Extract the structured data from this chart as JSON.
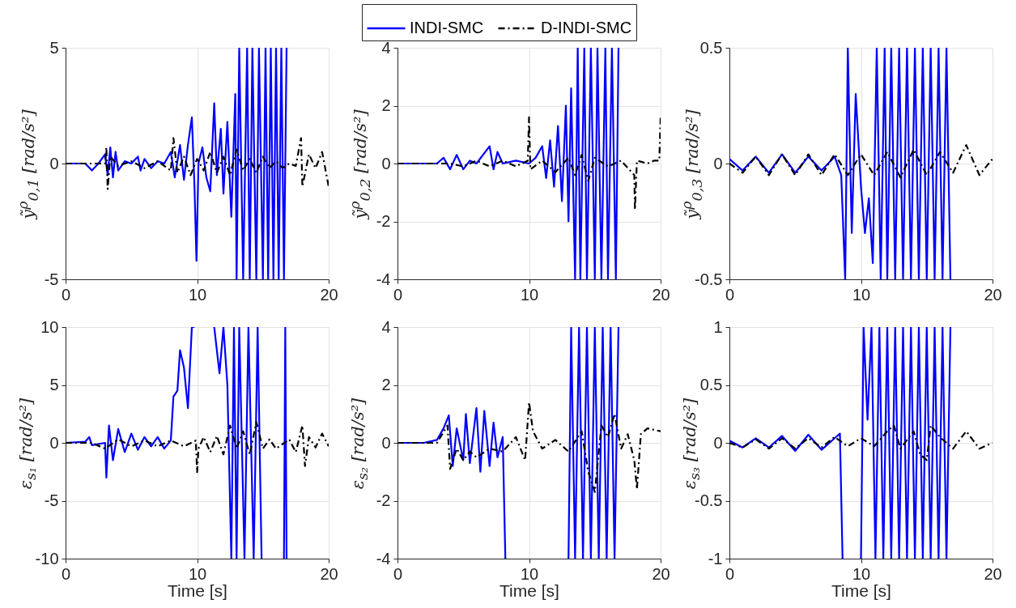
{
  "chart_data": [
    {
      "type": "line",
      "ylabel": "ỹ$^{ρ}$$_{0,1}$ [rad/s²]",
      "xlim": [
        0,
        20
      ],
      "xticks": [
        0,
        10,
        20
      ],
      "ylim": [
        -5,
        5
      ],
      "yticks": [
        -5,
        0,
        5
      ],
      "grid": true,
      "legend": "top",
      "series": [
        {
          "name": "INDI-SMC",
          "color": "#0000ff",
          "line_style": "solid",
          "x": [
            0,
            1.5,
            2,
            2.5,
            3,
            3.2,
            3.4,
            3.6,
            3.8,
            4,
            4.5,
            5,
            5.5,
            5.7,
            6,
            6.5,
            7,
            7.5,
            8,
            8.3,
            8.7,
            9,
            9.3,
            9.6,
            9.8,
            9.95,
            10.1,
            10.4,
            10.7,
            11,
            11.3,
            11.5,
            11.8,
            12,
            12.3,
            12.6,
            12.9,
            13,
            13.2,
            13.5,
            13.8,
            14,
            14.2,
            14.5,
            14.7,
            15,
            15.2,
            15.4,
            15.6,
            15.8,
            16,
            16.2,
            16.4,
            16.6,
            16.8
          ],
          "values": [
            0,
            0,
            -0.3,
            0,
            0.4,
            -0.5,
            0.7,
            -0.6,
            0.5,
            -0.3,
            0.1,
            0,
            0.3,
            -0.3,
            0.2,
            -0.2,
            0.1,
            0,
            0.5,
            -0.6,
            0.8,
            -0.7,
            0.8,
            2,
            -1,
            -4.2,
            0,
            0.7,
            -0.6,
            -1.2,
            2.6,
            -0.5,
            1.5,
            -1.3,
            1.8,
            -2.3,
            3,
            -5,
            5,
            -5,
            5,
            -5,
            5,
            -5,
            5,
            -5,
            5,
            -5,
            5,
            -5,
            5,
            -5,
            5,
            -5,
            5
          ]
        },
        {
          "name": "D-INDI-SMC",
          "color": "#000000",
          "line_style": "dashed",
          "x": [
            0,
            3,
            3.1,
            3.2,
            3.4,
            4,
            5,
            6,
            7,
            8,
            8.2,
            8.5,
            9,
            9.5,
            10,
            10.5,
            11,
            11.5,
            12,
            12.5,
            13,
            13.5,
            14,
            14.5,
            15,
            15.5,
            16,
            16.5,
            17,
            17.5,
            17.9,
            18,
            18.5,
            19,
            19.5,
            20
          ],
          "values": [
            0,
            0,
            0.7,
            -1.1,
            0.3,
            -0.1,
            0.1,
            -0.2,
            0.1,
            -0.3,
            1.1,
            -0.4,
            0.3,
            -0.5,
            0.2,
            -0.3,
            0.5,
            -0.4,
            0.3,
            -0.5,
            0.6,
            -0.3,
            0.2,
            -0.4,
            0.3,
            -0.2,
            0.1,
            -0.2,
            0,
            -0.1,
            1.1,
            -1,
            0.4,
            -0.2,
            0.5,
            -1
          ]
        }
      ]
    },
    {
      "type": "line",
      "ylabel": "ỹ$^{ρ}$$_{0,2}$ [rad/s²]",
      "xlim": [
        0,
        20
      ],
      "xticks": [
        0,
        10,
        20
      ],
      "ylim": [
        -4,
        4
      ],
      "yticks": [
        -4,
        -2,
        0,
        2,
        4
      ],
      "grid": true,
      "legend": "top",
      "series": [
        {
          "name": "INDI-SMC",
          "color": "#0000ff",
          "line_style": "solid",
          "x": [
            0,
            3,
            3.5,
            4,
            4.5,
            5,
            5.5,
            6,
            7,
            7.3,
            7.6,
            8,
            9,
            10,
            10.5,
            11,
            11.3,
            11.6,
            11.9,
            12.2,
            12.5,
            12.8,
            13,
            13.2,
            13.5,
            13.7,
            13.9,
            14.2,
            14.4,
            14.7,
            15,
            15.2,
            15.5,
            15.8,
            16,
            16.3,
            16.6,
            16.8
          ],
          "values": [
            0,
            0,
            0.2,
            -0.2,
            0.3,
            -0.2,
            0.1,
            0,
            0.6,
            -0.2,
            0.4,
            0,
            0.1,
            0,
            0.2,
            0.6,
            -0.5,
            0.8,
            -0.8,
            1.3,
            -1.3,
            2,
            -2,
            2.6,
            -4,
            4,
            -4,
            4,
            -4,
            4,
            -4,
            4,
            -4,
            4,
            -4,
            4,
            -4,
            4
          ]
        },
        {
          "name": "D-INDI-SMC",
          "color": "#000000",
          "line_style": "dashed",
          "x": [
            0,
            4,
            5,
            6,
            7,
            8,
            9,
            9.9,
            10,
            10.1,
            11,
            12,
            13,
            13.5,
            14,
            14.5,
            15,
            16,
            17,
            18,
            18.05,
            18.2,
            19,
            19.5,
            19.9,
            20
          ],
          "values": [
            0,
            0,
            -0.1,
            0.1,
            -0.1,
            0.1,
            -0.1,
            0.1,
            1.6,
            -0.2,
            0.1,
            -0.3,
            0.2,
            -0.4,
            0.3,
            -0.6,
            0.2,
            -0.1,
            0.1,
            -0.4,
            -1.6,
            0.1,
            0,
            0.1,
            0.1,
            1.6
          ]
        }
      ]
    },
    {
      "type": "line",
      "ylabel": "ỹ$^{ρ}$$_{0,3}$ [rad/s²]",
      "xlim": [
        0,
        20
      ],
      "xticks": [
        0,
        10,
        20
      ],
      "ylim": [
        -0.5,
        0.5
      ],
      "yticks": [
        -0.5,
        0,
        0.5
      ],
      "grid": true,
      "legend": "top",
      "series": [
        {
          "name": "INDI-SMC",
          "color": "#0000ff",
          "line_style": "solid",
          "x": [
            0,
            1,
            2,
            3,
            4,
            5,
            6,
            7,
            8,
            8.5,
            8.8,
            9,
            9.3,
            9.6,
            10,
            10.3,
            10.6,
            10.9,
            11.2,
            11.5,
            11.8,
            12,
            12.3,
            12.6,
            12.9,
            13.2,
            13.5,
            13.8,
            14.1,
            14.4,
            14.7,
            15,
            15.3,
            15.6,
            15.9,
            16.2,
            16.5,
            16.8
          ],
          "values": [
            0.02,
            -0.03,
            0.03,
            -0.04,
            0.04,
            -0.04,
            0.03,
            -0.03,
            0.03,
            -0.05,
            -0.5,
            0.5,
            -0.3,
            0.3,
            -0.1,
            -0.3,
            -0.15,
            -0.43,
            0.5,
            -0.5,
            0.5,
            -0.5,
            0.5,
            -0.5,
            0.5,
            -0.5,
            0.5,
            -0.5,
            0.5,
            -0.5,
            0.5,
            -0.5,
            0.5,
            -0.5,
            0.5,
            -0.5,
            0.5,
            -0.5
          ]
        },
        {
          "name": "D-INDI-SMC",
          "color": "#000000",
          "line_style": "dashed",
          "x": [
            0,
            1,
            2,
            3,
            4,
            5,
            6,
            7,
            8,
            9,
            10,
            11,
            12,
            13,
            14,
            15,
            16,
            17,
            18,
            19,
            20
          ],
          "values": [
            0,
            -0.04,
            0.03,
            -0.05,
            0.04,
            -0.05,
            0.04,
            -0.05,
            0.04,
            -0.05,
            0.04,
            -0.05,
            0.05,
            -0.06,
            0.06,
            -0.05,
            0.05,
            -0.04,
            0.08,
            -0.05,
            0.02
          ]
        }
      ]
    },
    {
      "type": "line",
      "xlabel": "Time [s]",
      "ylabel": "ε$_{s₁}$ [rad/s²]",
      "xlim": [
        0,
        20
      ],
      "xticks": [
        0,
        10,
        20
      ],
      "ylim": [
        -10,
        10
      ],
      "yticks": [
        -10,
        -5,
        0,
        5,
        10
      ],
      "grid": true,
      "legend": "top",
      "series": [
        {
          "name": "INDI-SMC",
          "color": "#0000ff",
          "line_style": "solid",
          "x": [
            0,
            1.5,
            1.8,
            2,
            3,
            3.1,
            3.3,
            3.6,
            4,
            4.5,
            5,
            5.5,
            6,
            6.5,
            7,
            7.5,
            8,
            8.2,
            8.5,
            8.7,
            9,
            9.3,
            9.6,
            9.8,
            10.5,
            11.3,
            11.5,
            11.7,
            12,
            12.3,
            12.6,
            12.8,
            13,
            13.2,
            13.6,
            13.9,
            14.3,
            14.6,
            14.9,
            15.2,
            16.6,
            16.7,
            16.8
          ],
          "values": [
            0,
            0.1,
            0.5,
            -0.2,
            0,
            -3,
            1.5,
            -1.5,
            1.2,
            -0.8,
            0.8,
            -0.6,
            0.5,
            -0.3,
            0.5,
            -0.5,
            0.2,
            4,
            4.5,
            8,
            6.5,
            3,
            10,
            10,
            null,
            10,
            8,
            6,
            10,
            5,
            -10,
            10,
            -10,
            10,
            -10,
            10,
            -10,
            10,
            -10,
            null,
            -10,
            10,
            -10
          ]
        },
        {
          "name": "D-INDI-SMC",
          "color": "#000000",
          "line_style": "dashed",
          "x": [
            0,
            2,
            3,
            4,
            5,
            6,
            7,
            8,
            9,
            9.9,
            10,
            10.1,
            10.5,
            11,
            11.5,
            12,
            12.5,
            13,
            13.5,
            14,
            14.5,
            15,
            15.5,
            16,
            17,
            17.5,
            18,
            18.2,
            18.5,
            19,
            19.5,
            20
          ],
          "values": [
            0,
            0,
            -0.5,
            0.3,
            -0.3,
            0.2,
            -0.3,
            0.2,
            -0.3,
            0.2,
            -2.6,
            -0.5,
            0.5,
            -0.8,
            0.6,
            -1,
            1.5,
            -0.5,
            1,
            -1,
            1.8,
            -0.5,
            0.3,
            -0.5,
            0.3,
            -0.8,
            1.5,
            -2,
            0.5,
            -0.4,
            0.8,
            -0.3
          ]
        }
      ]
    },
    {
      "type": "line",
      "xlabel": "Time [s]",
      "ylabel": "ε$_{s₂}$ [rad/s²]",
      "xlim": [
        0,
        20
      ],
      "xticks": [
        0,
        10,
        20
      ],
      "ylim": [
        -4,
        4
      ],
      "yticks": [
        -4,
        -2,
        0,
        2,
        4
      ],
      "grid": true,
      "legend": "top",
      "series": [
        {
          "name": "INDI-SMC",
          "color": "#0000ff",
          "line_style": "solid",
          "x": [
            0,
            2,
            3,
            3.5,
            3.9,
            4.2,
            4.5,
            5,
            5.2,
            5.5,
            6,
            6.3,
            6.6,
            7,
            7.3,
            7.6,
            8,
            8.2,
            9,
            13,
            13.2,
            13.5,
            13.8,
            14.1,
            14.4,
            14.7,
            15,
            15.3,
            15.6,
            15.9,
            16.2,
            16.5,
            16.8
          ],
          "values": [
            0,
            0,
            0.1,
            0.5,
            0.95,
            -0.8,
            0.5,
            -0.6,
            1,
            -0.7,
            1.2,
            -1,
            1.1,
            -0.8,
            0.7,
            -0.5,
            0.2,
            -4,
            null,
            -4,
            4,
            -4,
            4,
            -4,
            4,
            -4,
            4,
            -4,
            4,
            -4,
            4,
            -4,
            4
          ]
        },
        {
          "name": "D-INDI-SMC",
          "color": "#000000",
          "line_style": "dashed",
          "x": [
            0,
            3,
            3.8,
            4,
            4.5,
            5,
            5.5,
            6,
            7,
            8,
            9,
            9.7,
            10,
            10.3,
            11,
            12,
            13,
            14,
            14.5,
            15,
            15.5,
            16,
            16.5,
            17,
            17.5,
            18,
            18.2,
            18.5,
            19,
            20
          ],
          "values": [
            0,
            0,
            0.6,
            -0.9,
            -0.2,
            -0.6,
            -0.3,
            -0.5,
            -0.2,
            -0.3,
            0.2,
            -0.6,
            1.4,
            0.4,
            -0.2,
            0.1,
            -0.3,
            0.4,
            -1,
            -1.7,
            0.6,
            0.2,
            1,
            -0.2,
            0.3,
            -0.6,
            -1.6,
            0.3,
            0.5,
            0.4
          ]
        }
      ]
    },
    {
      "type": "line",
      "xlabel": "Time [s]",
      "ylabel": "ε$_{s₃}$ [rad/s²]",
      "xlim": [
        0,
        20
      ],
      "xticks": [
        0,
        10,
        20
      ],
      "ylim": [
        -1,
        1
      ],
      "yticks": [
        -1,
        -0.5,
        0,
        0.5,
        1
      ],
      "grid": true,
      "legend": "top",
      "series": [
        {
          "name": "INDI-SMC",
          "color": "#0000ff",
          "line_style": "solid",
          "x": [
            0,
            1,
            2,
            3,
            4,
            5,
            6,
            7,
            8,
            8.4,
            8.6,
            9.2,
            10,
            10.2,
            10.5,
            10.8,
            11.1,
            11.4,
            11.7,
            12,
            12.3,
            12.6,
            12.9,
            13.2,
            13.5,
            13.8,
            14.1,
            14.4,
            14.7,
            15,
            15.3,
            15.6,
            15.9,
            16.2,
            16.5,
            16.8
          ],
          "values": [
            0.02,
            -0.04,
            0.04,
            -0.04,
            0.06,
            -0.07,
            0.07,
            -0.06,
            0.04,
            0.08,
            -1,
            null,
            -1,
            1,
            0.2,
            1,
            -1,
            1,
            -1,
            1,
            -1,
            1,
            -1,
            1,
            -1,
            1,
            -1,
            1,
            -1,
            1,
            -1,
            1,
            -1,
            1,
            -1,
            1
          ]
        },
        {
          "name": "D-INDI-SMC",
          "color": "#000000",
          "line_style": "dashed",
          "x": [
            0,
            1,
            2,
            3,
            4,
            5,
            6,
            7,
            8,
            9,
            10,
            11,
            12,
            12.5,
            13,
            14,
            14.5,
            15,
            15.3,
            16,
            17,
            18,
            19,
            20
          ],
          "values": [
            0,
            -0.04,
            0.03,
            -0.05,
            0.04,
            -0.05,
            0.04,
            -0.04,
            0.05,
            -0.03,
            0.04,
            -0.03,
            0.1,
            0.15,
            -0.05,
            0.1,
            -0.1,
            -0.15,
            0.15,
            0.05,
            -0.05,
            0.1,
            -0.05,
            0
          ]
        }
      ]
    }
  ]
}
